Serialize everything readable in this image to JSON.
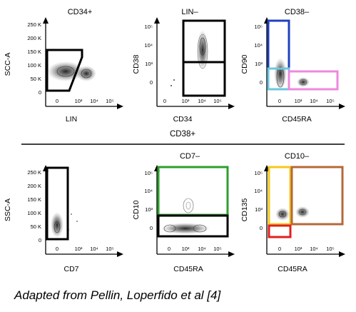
{
  "section_label": "CD38+",
  "caption": "Adapted from Pellin, Loperfido et al [4]",
  "plots": [
    {
      "id": "cd34pos",
      "title": "CD34+",
      "xlabel": "LIN",
      "ylabel": "SCC-A",
      "xticks": [
        "0",
        "10³",
        "10⁴",
        "10⁵"
      ],
      "yticks": [
        "250 K",
        "200 K",
        "150 K",
        "100 K",
        "50 K",
        "0"
      ],
      "gates": [
        {
          "color": "#000000",
          "label": ""
        }
      ]
    },
    {
      "id": "linneg",
      "title": "LIN–",
      "xlabel": "CD34",
      "ylabel": "CD38",
      "xticks": [
        "0",
        "10³",
        "10⁴",
        "10⁵"
      ],
      "yticks": [
        "10⁵",
        "10⁴",
        "10³",
        "0"
      ],
      "gates": [
        {
          "color": "#000000",
          "label": ""
        },
        {
          "color": "#000000",
          "label": ""
        }
      ]
    },
    {
      "id": "cd38neg",
      "title": "CD38–",
      "xlabel": "CD45RA",
      "ylabel": "CD90",
      "xticks": [
        "0",
        "10³",
        "10⁴",
        "10⁵"
      ],
      "yticks": [
        "10⁵",
        "10⁴",
        "10³",
        "0"
      ],
      "gates": [
        {
          "color": "#1f3fbf"
        },
        {
          "color": "#6cc7e0"
        },
        {
          "color": "#ee88dd"
        }
      ]
    },
    {
      "id": "cd38pos",
      "title": "",
      "xlabel": "CD7",
      "ylabel": "SSC-A",
      "xticks": [
        "0",
        "10³",
        "10⁴",
        "10⁵"
      ],
      "yticks": [
        "250 K",
        "200 K",
        "150 K",
        "100 K",
        "50 K",
        "0"
      ],
      "gates": [
        {
          "color": "#000000"
        }
      ]
    },
    {
      "id": "cd7neg",
      "title": "CD7–",
      "xlabel": "CD45RA",
      "ylabel": "CD10",
      "xticks": [
        "0",
        "10³",
        "10⁴",
        "10⁵"
      ],
      "yticks": [
        "10⁵",
        "10⁴",
        "10³",
        "0"
      ],
      "gates": [
        {
          "color": "#2e9e2e"
        },
        {
          "color": "#000000"
        }
      ]
    },
    {
      "id": "cd10neg",
      "title": "CD10–",
      "xlabel": "CD45RA",
      "ylabel": "CD135",
      "xticks": [
        "0",
        "10³",
        "10⁴",
        "10⁵"
      ],
      "yticks": [
        "10⁵",
        "10⁴",
        "10³",
        "0"
      ],
      "gates": [
        {
          "color": "#f2c81e"
        },
        {
          "color": "#b5683a"
        },
        {
          "color": "#e02020"
        }
      ]
    }
  ]
}
